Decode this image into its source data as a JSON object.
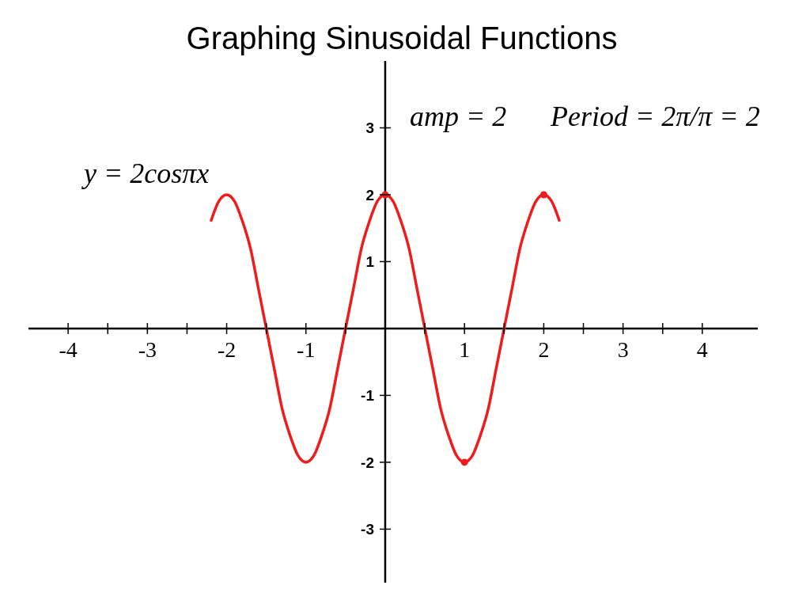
{
  "chart_data": {
    "type": "line",
    "title": "Graphing Sinusoidal Functions",
    "annotations": [
      "amp = 2",
      "Period = 2π/π = 2",
      "y = 2cosπx"
    ],
    "xlim": [
      -4.5,
      4.7
    ],
    "ylim": [
      -3.8,
      4
    ],
    "xticks": [
      -4,
      {
        "value": -3.5,
        "label": null
      },
      -3,
      {
        "value": -2.5,
        "label": null
      },
      -2,
      {
        "value": -1.5,
        "label": null
      },
      -1,
      {
        "value": -0.5,
        "label": null
      },
      {
        "value": 0.5,
        "label": null
      },
      1,
      {
        "value": 1.5,
        "label": null
      },
      2,
      {
        "value": 2.5,
        "label": null
      },
      3,
      {
        "value": 3.5,
        "label": null
      },
      4
    ],
    "yticks": [
      -3,
      -2,
      -1,
      1,
      2,
      3
    ],
    "series": [
      {
        "color": "#ee1c1c",
        "marker": "none",
        "x": [
          -2.2,
          -2.1,
          -2.0,
          -1.9,
          -1.8,
          -1.7,
          -1.6,
          -1.5,
          -1.4,
          -1.3,
          -1.2,
          -1.1,
          -1.0,
          -0.9,
          -0.8,
          -0.7,
          -0.6,
          -0.5,
          -0.4,
          -0.3,
          -0.2,
          -0.1,
          0,
          0.1,
          0.2,
          0.3,
          0.4,
          0.5,
          0.6,
          0.7,
          0.8,
          0.9,
          1.0,
          1.1,
          1.2,
          1.3,
          1.4,
          1.5,
          1.6,
          1.7,
          1.8,
          1.9,
          2.0,
          2.1,
          2.2
        ],
        "values": [
          1.6,
          1.9,
          2,
          1.9,
          1.6,
          1.2,
          0.6,
          0,
          -0.6,
          -1.2,
          -1.6,
          -1.9,
          -2,
          -1.9,
          -1.6,
          -1.2,
          -0.6,
          0,
          0.6,
          1.2,
          1.6,
          1.9,
          2,
          1.9,
          1.6,
          1.2,
          0.6,
          0,
          -0.6,
          -1.2,
          -1.6,
          -1.9,
          -2,
          -1.9,
          -1.6,
          -1.2,
          -0.6,
          0,
          0.6,
          1.2,
          1.6,
          1.9,
          2,
          1.9,
          1.6
        ]
      },
      {
        "type": "scatter",
        "color": "#ee1c1c",
        "marker": "circle",
        "x": [
          0,
          1,
          2
        ],
        "values": [
          2,
          -2,
          2
        ]
      }
    ]
  }
}
